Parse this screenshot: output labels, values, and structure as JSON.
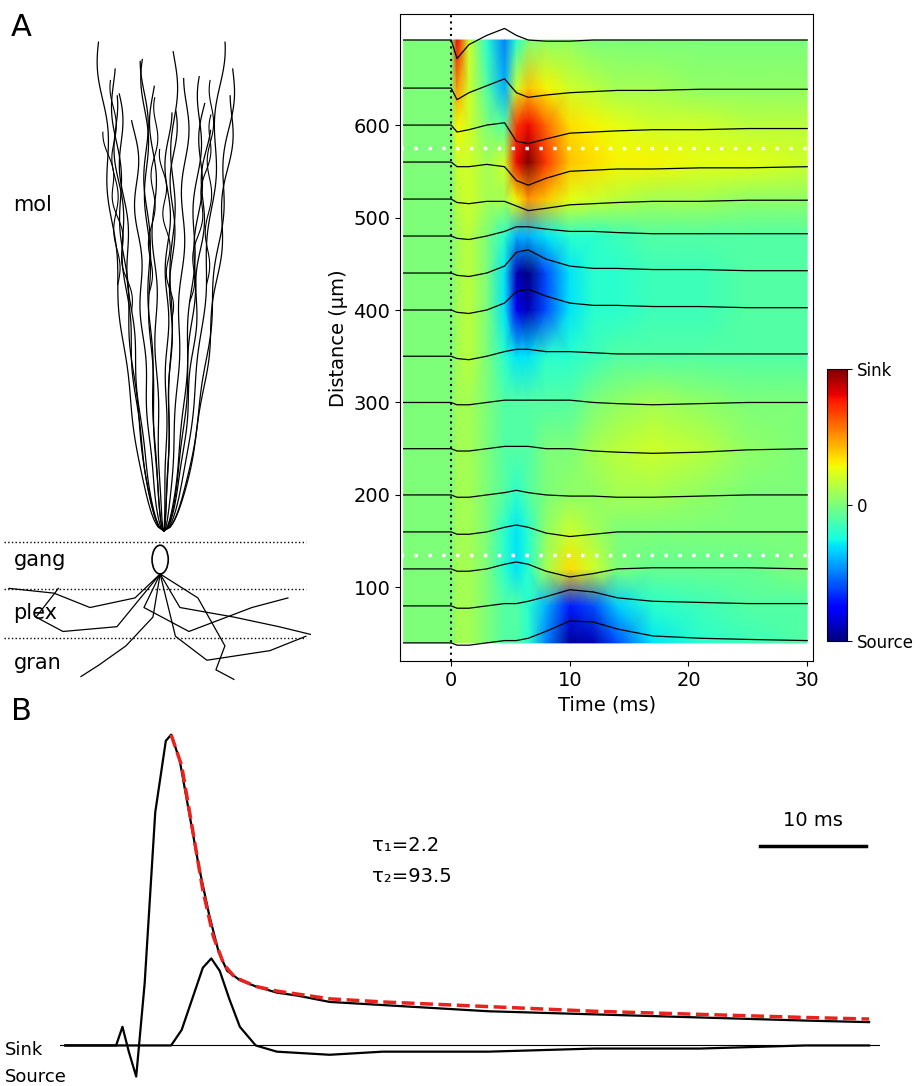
{
  "panel_labels": [
    "A",
    "B"
  ],
  "diagram": {
    "layers": [
      "mol",
      "gang",
      "plex",
      "gran"
    ]
  },
  "chart_data": [
    {
      "type": "heatmap",
      "x_label": "Time (ms)",
      "y_label": "Distance (µm)",
      "xlim": [
        -4.3,
        30.5
      ],
      "ylim": [
        20,
        720
      ],
      "xticks": [
        0,
        10,
        20,
        30
      ],
      "yticks": [
        100,
        200,
        300,
        400,
        500,
        600
      ],
      "x": [
        -4,
        0,
        0.5,
        1.5,
        3,
        4.5,
        5.5,
        6.5,
        8,
        10,
        12,
        14,
        17,
        21,
        25,
        30
      ],
      "y": [
        40,
        80,
        120,
        160,
        200,
        250,
        300,
        350,
        400,
        440,
        480,
        520,
        560,
        600,
        640,
        692
      ],
      "cells": [
        [
          0,
          0,
          0.1,
          0.1,
          0,
          -0.1,
          -0.1,
          -0.2,
          -0.5,
          -0.95,
          -0.9,
          -0.6,
          -0.3,
          -0.2,
          -0.15,
          -0.1
        ],
        [
          0,
          0,
          0.1,
          0.1,
          0,
          -0.1,
          -0.1,
          -0.2,
          -0.4,
          -0.7,
          -0.6,
          -0.35,
          -0.2,
          -0.15,
          -0.1,
          -0.1
        ],
        [
          0,
          0,
          0.1,
          0.1,
          0,
          -0.2,
          -0.3,
          -0.2,
          0.1,
          0.35,
          0.2,
          0,
          -0.05,
          -0.05,
          -0.05,
          0
        ],
        [
          0,
          0,
          0.1,
          0.1,
          0,
          -0.2,
          -0.3,
          -0.2,
          0.05,
          0.2,
          0.1,
          0,
          0,
          0,
          0,
          0
        ],
        [
          0,
          0,
          0.1,
          0.1,
          0,
          -0.1,
          -0.2,
          -0.1,
          0,
          0.05,
          0.05,
          0.1,
          0.1,
          0.05,
          0,
          0
        ],
        [
          0,
          0,
          0.1,
          0.1,
          0,
          -0.1,
          -0.1,
          -0.1,
          0,
          0,
          0.1,
          0.15,
          0.2,
          0.15,
          0.05,
          0
        ],
        [
          0,
          0,
          0.1,
          0.1,
          0,
          -0.1,
          -0.1,
          -0.1,
          -0.1,
          -0.1,
          0,
          0.05,
          0.1,
          0.05,
          0,
          0
        ],
        [
          0,
          0,
          0.1,
          0.15,
          0,
          -0.2,
          -0.3,
          -0.3,
          -0.2,
          -0.2,
          -0.15,
          -0.1,
          -0.1,
          -0.1,
          -0.1,
          -0.1
        ],
        [
          0,
          0,
          0.1,
          0.15,
          0,
          -0.3,
          -0.8,
          -0.9,
          -0.6,
          -0.3,
          -0.2,
          -0.2,
          -0.15,
          -0.15,
          -0.1,
          -0.1
        ],
        [
          0,
          0,
          0.1,
          0.15,
          0,
          -0.3,
          -0.9,
          -1.0,
          -0.6,
          -0.3,
          -0.2,
          -0.2,
          -0.15,
          -0.15,
          -0.1,
          -0.1
        ],
        [
          0,
          0,
          0.1,
          0.15,
          0,
          -0.2,
          -0.4,
          -0.4,
          -0.3,
          -0.2,
          -0.2,
          -0.15,
          -0.1,
          -0.1,
          -0.1,
          -0.1
        ],
        [
          0,
          0,
          0.15,
          0.2,
          0.1,
          0.1,
          0.3,
          0.5,
          0.4,
          0.25,
          0.2,
          0.15,
          0.1,
          0.1,
          0.05,
          0.05
        ],
        [
          0,
          0,
          0.2,
          0.2,
          0.1,
          0.2,
          0.8,
          1.0,
          0.7,
          0.4,
          0.35,
          0.3,
          0.3,
          0.25,
          0.25,
          0.2
        ],
        [
          0,
          0,
          0.3,
          0.2,
          0,
          -0.1,
          0.7,
          0.8,
          0.6,
          0.35,
          0.3,
          0.25,
          0.2,
          0.2,
          0.15,
          0.15
        ],
        [
          0,
          0,
          0.5,
          0.2,
          -0.1,
          -0.4,
          0.2,
          0.4,
          0.3,
          0.2,
          0.15,
          0.1,
          0.1,
          0.05,
          0.05,
          0.05
        ],
        [
          0,
          0,
          0.8,
          0.2,
          -0.2,
          -0.5,
          -0.2,
          0,
          0.05,
          0.05,
          0,
          0,
          0,
          0,
          0,
          0
        ]
      ],
      "colorbar": {
        "range": [
          -1,
          1
        ],
        "ticks": [
          {
            "value": 1,
            "label": "Sink"
          },
          0,
          {
            "value": -1,
            "label": "Source"
          }
        ]
      },
      "reference_lines": {
        "y": [
          575,
          135
        ],
        "x": [
          0
        ]
      }
    },
    {
      "type": "line",
      "xlim": [
        -0.5,
        77
      ],
      "ylim": [
        -0.12,
        1.11
      ],
      "tick_labels": false,
      "series": [
        {
          "color": "#000000",
          "line_style": "solid",
          "x": [
            0,
            4,
            4.8,
            5.4,
            6,
            6.7,
            7.5,
            8.5,
            9.5,
            10,
            10.8,
            11.7,
            12.6,
            13.6,
            14.5,
            15.3,
            16.5,
            18,
            20,
            22,
            25,
            30,
            35,
            40,
            45,
            50,
            55,
            60,
            65,
            70,
            76
          ],
          "values": [
            0,
            0,
            0,
            0.06,
            -0.02,
            -0.1,
            0.2,
            0.75,
            0.98,
            1.0,
            0.92,
            0.75,
            0.58,
            0.42,
            0.3,
            0.24,
            0.21,
            0.19,
            0.17,
            0.16,
            0.14,
            0.13,
            0.12,
            0.11,
            0.105,
            0.1,
            0.095,
            0.09,
            0.085,
            0.08,
            0.075
          ]
        },
        {
          "color": "#000000",
          "line_style": "solid",
          "x": [
            0,
            10,
            11,
            12,
            13,
            13.8,
            14.6,
            15.5,
            16.5,
            18,
            20,
            25,
            30,
            40,
            50,
            60,
            70,
            76
          ],
          "values": [
            0,
            0,
            0.05,
            0.15,
            0.25,
            0.28,
            0.24,
            0.15,
            0.06,
            0,
            -0.02,
            -0.03,
            -0.02,
            -0.02,
            -0.01,
            -0.01,
            0,
            0
          ]
        },
        {
          "color": "#e8231e",
          "line_style": "dashed",
          "x": [
            10,
            11,
            12,
            13,
            14,
            15,
            16,
            18,
            20,
            25,
            30,
            40,
            50,
            60,
            70,
            76
          ],
          "values": [
            1.0,
            0.9,
            0.7,
            0.5,
            0.35,
            0.26,
            0.22,
            0.19,
            0.175,
            0.15,
            0.14,
            0.125,
            0.11,
            0.1,
            0.09,
            0.085
          ]
        }
      ],
      "annotations": [
        "τ₁=2.2",
        "τ₂=93.5"
      ],
      "direction_labels": [
        "Sink",
        "Source"
      ],
      "scale_bar": {
        "length": 10,
        "label": "10 ms"
      }
    }
  ]
}
